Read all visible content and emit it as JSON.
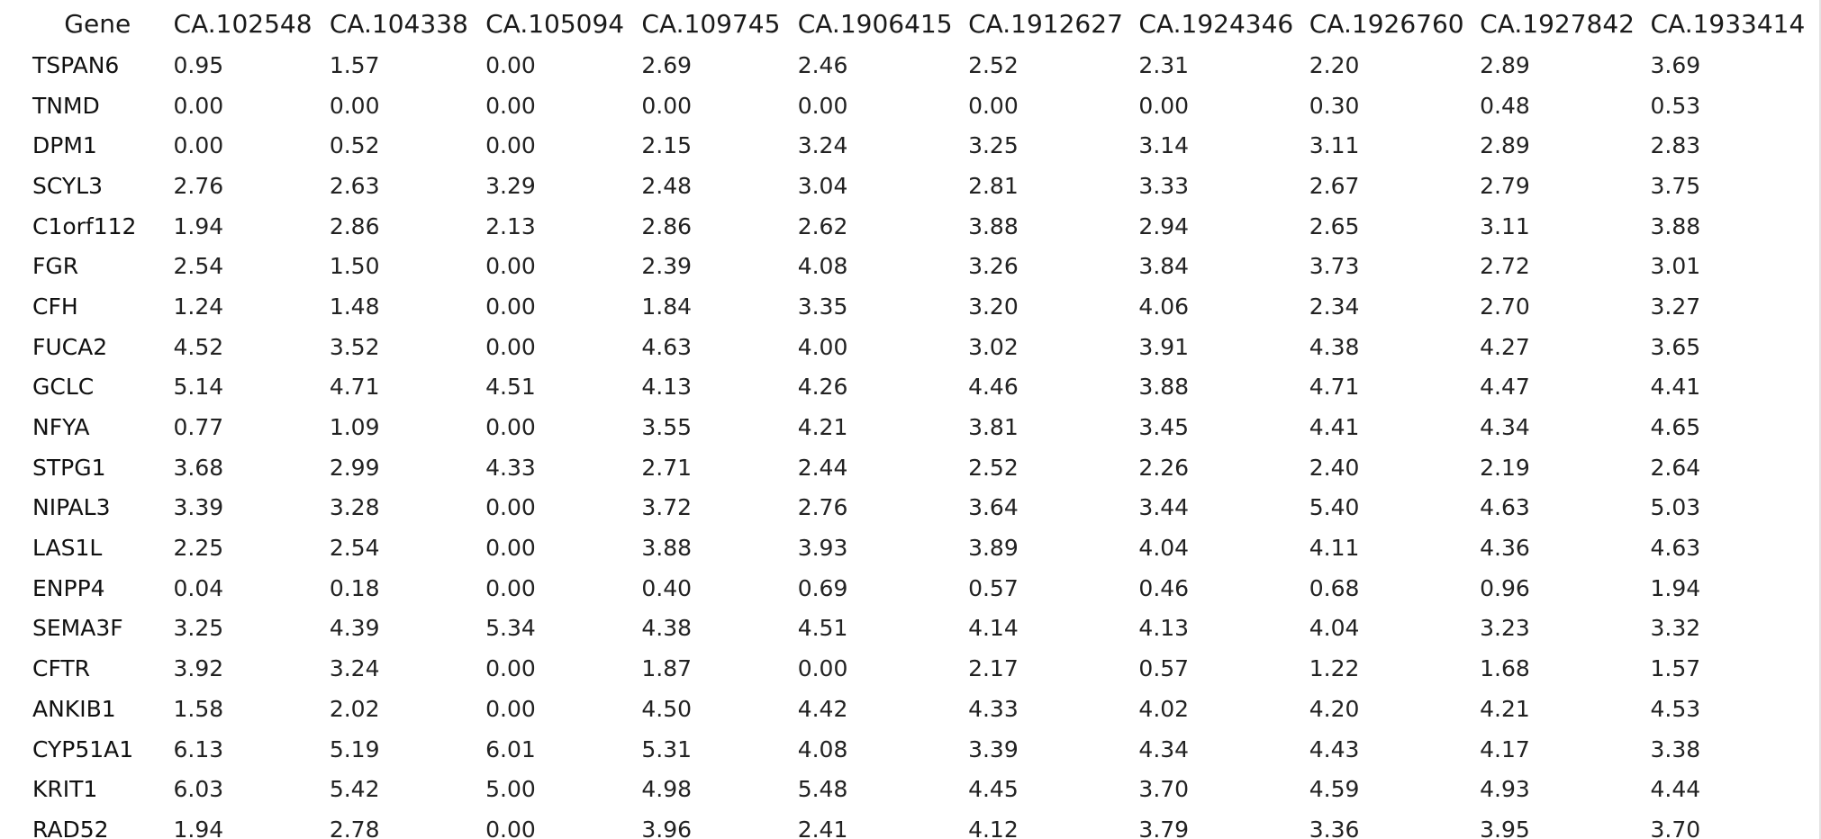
{
  "table": {
    "gene_header": "Gene",
    "columns": [
      "CA.102548",
      "CA.104338",
      "CA.105094",
      "CA.109745",
      "CA.1906415",
      "CA.1912627",
      "CA.1924346",
      "CA.1926760",
      "CA.1927842",
      "CA.1933414"
    ],
    "rows": [
      {
        "gene": "TSPAN6",
        "values": [
          "0.95",
          "1.57",
          "0.00",
          "2.69",
          "2.46",
          "2.52",
          "2.31",
          "2.20",
          "2.89",
          "3.69"
        ]
      },
      {
        "gene": "TNMD",
        "values": [
          "0.00",
          "0.00",
          "0.00",
          "0.00",
          "0.00",
          "0.00",
          "0.00",
          "0.30",
          "0.48",
          "0.53"
        ]
      },
      {
        "gene": "DPM1",
        "values": [
          "0.00",
          "0.52",
          "0.00",
          "2.15",
          "3.24",
          "3.25",
          "3.14",
          "3.11",
          "2.89",
          "2.83"
        ]
      },
      {
        "gene": "SCYL3",
        "values": [
          "2.76",
          "2.63",
          "3.29",
          "2.48",
          "3.04",
          "2.81",
          "3.33",
          "2.67",
          "2.79",
          "3.75"
        ]
      },
      {
        "gene": "C1orf112",
        "values": [
          "1.94",
          "2.86",
          "2.13",
          "2.86",
          "2.62",
          "3.88",
          "2.94",
          "2.65",
          "3.11",
          "3.88"
        ]
      },
      {
        "gene": "FGR",
        "values": [
          "2.54",
          "1.50",
          "0.00",
          "2.39",
          "4.08",
          "3.26",
          "3.84",
          "3.73",
          "2.72",
          "3.01"
        ]
      },
      {
        "gene": "CFH",
        "values": [
          "1.24",
          "1.48",
          "0.00",
          "1.84",
          "3.35",
          "3.20",
          "4.06",
          "2.34",
          "2.70",
          "3.27"
        ]
      },
      {
        "gene": "FUCA2",
        "values": [
          "4.52",
          "3.52",
          "0.00",
          "4.63",
          "4.00",
          "3.02",
          "3.91",
          "4.38",
          "4.27",
          "3.65"
        ]
      },
      {
        "gene": "GCLC",
        "values": [
          "5.14",
          "4.71",
          "4.51",
          "4.13",
          "4.26",
          "4.46",
          "3.88",
          "4.71",
          "4.47",
          "4.41"
        ]
      },
      {
        "gene": "NFYA",
        "values": [
          "0.77",
          "1.09",
          "0.00",
          "3.55",
          "4.21",
          "3.81",
          "3.45",
          "4.41",
          "4.34",
          "4.65"
        ]
      },
      {
        "gene": "STPG1",
        "values": [
          "3.68",
          "2.99",
          "4.33",
          "2.71",
          "2.44",
          "2.52",
          "2.26",
          "2.40",
          "2.19",
          "2.64"
        ]
      },
      {
        "gene": "NIPAL3",
        "values": [
          "3.39",
          "3.28",
          "0.00",
          "3.72",
          "2.76",
          "3.64",
          "3.44",
          "5.40",
          "4.63",
          "5.03"
        ]
      },
      {
        "gene": "LAS1L",
        "values": [
          "2.25",
          "2.54",
          "0.00",
          "3.88",
          "3.93",
          "3.89",
          "4.04",
          "4.11",
          "4.36",
          "4.63"
        ]
      },
      {
        "gene": "ENPP4",
        "values": [
          "0.04",
          "0.18",
          "0.00",
          "0.40",
          "0.69",
          "0.57",
          "0.46",
          "0.68",
          "0.96",
          "1.94"
        ]
      },
      {
        "gene": "SEMA3F",
        "values": [
          "3.25",
          "4.39",
          "5.34",
          "4.38",
          "4.51",
          "4.14",
          "4.13",
          "4.04",
          "3.23",
          "3.32"
        ]
      },
      {
        "gene": "CFTR",
        "values": [
          "3.92",
          "3.24",
          "0.00",
          "1.87",
          "0.00",
          "2.17",
          "0.57",
          "1.22",
          "1.68",
          "1.57"
        ]
      },
      {
        "gene": "ANKIB1",
        "values": [
          "1.58",
          "2.02",
          "0.00",
          "4.50",
          "4.42",
          "4.33",
          "4.02",
          "4.20",
          "4.21",
          "4.53"
        ]
      },
      {
        "gene": "CYP51A1",
        "values": [
          "6.13",
          "5.19",
          "6.01",
          "5.31",
          "4.08",
          "3.39",
          "4.34",
          "4.43",
          "4.17",
          "3.38"
        ]
      },
      {
        "gene": "KRIT1",
        "values": [
          "6.03",
          "5.42",
          "5.00",
          "4.98",
          "5.48",
          "4.45",
          "3.70",
          "4.59",
          "4.93",
          "4.44"
        ]
      },
      {
        "gene": "RAD52",
        "values": [
          "1.94",
          "2.78",
          "0.00",
          "3.96",
          "2.41",
          "4.12",
          "3.79",
          "3.36",
          "3.95",
          "3.70"
        ]
      }
    ]
  }
}
